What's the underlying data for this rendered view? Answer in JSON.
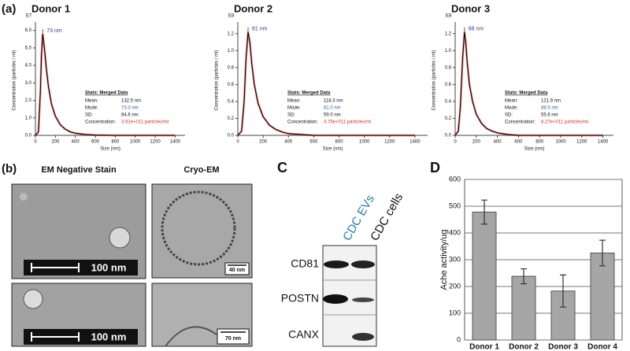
{
  "panels": {
    "a": "(a)",
    "b": "(b)",
    "c": "C",
    "d": "D"
  },
  "em": {
    "left_title": "EM Negative Stain",
    "right_title": "Cryo-EM",
    "scale_1": "100 nm",
    "scale_2": "100 nm",
    "scale_3": "40 nm",
    "scale_4": "70 nm"
  },
  "blot": {
    "lanes": [
      "CDC EVs",
      "CDC cells"
    ],
    "rows": [
      "CD81",
      "POSTN",
      "CANX"
    ]
  },
  "chart_data": [
    {
      "type": "line",
      "title": "Donor 1",
      "xlabel": "Size (nm)",
      "ylabel": "Concentration (particles / ml)",
      "y_exponent": "E7",
      "annotation": "73 nm",
      "x": [
        0,
        30,
        50,
        60,
        73,
        90,
        110,
        130,
        160,
        200,
        250,
        300,
        350,
        400,
        500,
        600,
        800,
        1000,
        1400
      ],
      "values": [
        0,
        0.2,
        2.5,
        4.5,
        5.8,
        5.0,
        3.8,
        2.8,
        1.8,
        1.1,
        0.6,
        0.35,
        0.2,
        0.12,
        0.05,
        0.02,
        0,
        0,
        0
      ],
      "color": "#000000",
      "xlim": [
        0,
        1500
      ],
      "xticks": [
        0,
        200,
        400,
        600,
        800,
        1000,
        1200,
        1400
      ],
      "ylim": [
        0,
        6.3
      ],
      "yticks": [
        {
          "value": 0,
          "label": "0.0"
        },
        {
          "value": 1,
          "label": "1.0"
        },
        {
          "value": 2,
          "label": "2.0"
        },
        {
          "value": 3,
          "label": "3.0"
        },
        {
          "value": 4,
          "label": "4.0"
        },
        {
          "value": 5,
          "label": "5.0"
        },
        {
          "value": 6,
          "label": "6.0"
        }
      ],
      "stats_title": "Stats: Merged Data",
      "stats": [
        [
          "Mean:",
          "132.5 nm"
        ],
        [
          "Mode:",
          "73.3 nm"
        ],
        [
          "SD:",
          "84.6 nm"
        ],
        [
          "Concentration:",
          "3.91e+011 particles/ml"
        ]
      ]
    },
    {
      "type": "line",
      "title": "Donor 2",
      "xlabel": "Size (nm)",
      "ylabel": "Concentration (particles / ml)",
      "y_exponent": "E8",
      "annotation": "81 nm",
      "x": [
        0,
        30,
        50,
        65,
        81,
        95,
        110,
        130,
        160,
        200,
        250,
        300,
        350,
        400,
        500,
        600,
        800,
        1000,
        1400
      ],
      "values": [
        0,
        0.05,
        0.4,
        0.9,
        1.22,
        1.1,
        0.85,
        0.6,
        0.38,
        0.22,
        0.12,
        0.07,
        0.04,
        0.02,
        0.01,
        0,
        0,
        0,
        0
      ],
      "color": "#000000",
      "xlim": [
        0,
        1500
      ],
      "xticks": [
        0,
        200,
        400,
        600,
        800,
        1000,
        1200,
        1400
      ],
      "ylim": [
        0,
        1.3
      ],
      "yticks": [
        {
          "value": 0,
          "label": "0.0"
        },
        0.2,
        0.4,
        0.6,
        0.8,
        {
          "value": 1,
          "label": "1.0"
        },
        1.2
      ],
      "stats_title": "Stats: Merged Data",
      "stats": [
        [
          "Mean:",
          "118.3 nm"
        ],
        [
          "Mode:",
          "81.0 nm"
        ],
        [
          "SD:",
          "59.0 nm"
        ],
        [
          "Concentration:",
          "3.75e+011 particles/ml"
        ]
      ]
    },
    {
      "type": "line",
      "title": "Donor 3",
      "xlabel": "Size (nm)",
      "ylabel": "Concentration (particles / ml)",
      "y_exponent": "E8",
      "annotation": "88 nm",
      "x": [
        0,
        30,
        50,
        70,
        88,
        100,
        115,
        135,
        165,
        200,
        250,
        300,
        350,
        400,
        500,
        600,
        800,
        1000,
        1400
      ],
      "values": [
        0,
        0.05,
        0.35,
        0.9,
        1.22,
        1.1,
        0.85,
        0.6,
        0.4,
        0.25,
        0.14,
        0.08,
        0.05,
        0.03,
        0.01,
        0,
        0,
        0,
        0
      ],
      "color": "#000000",
      "xlim": [
        0,
        1500
      ],
      "xticks": [
        0,
        200,
        400,
        600,
        800,
        1000,
        1200,
        1400
      ],
      "ylim": [
        0,
        1.3
      ],
      "yticks": [
        {
          "value": 0,
          "label": "0.0"
        },
        0.2,
        0.4,
        0.6,
        0.8,
        {
          "value": 1,
          "label": "1.0"
        },
        1.2
      ],
      "stats_title": "Stats: Merged Data",
      "stats": [
        [
          "Mean:",
          "121.9 nm"
        ],
        [
          "Mode:",
          "88.5 nm"
        ],
        [
          "SD:",
          "55.6 nm"
        ],
        [
          "Concentration:",
          "8.27e+011 particles/ml"
        ]
      ]
    },
    {
      "type": "bar",
      "ylabel": "Ache activity/ug",
      "categories": [
        "Donor 1",
        "Donor 2",
        "Donor 3",
        "Donor 4"
      ],
      "values": [
        478,
        238,
        183,
        325
      ],
      "errors": [
        45,
        28,
        60,
        48
      ],
      "color": "#a6a6a6",
      "ylim": [
        0,
        600
      ],
      "yticks": [
        0,
        100,
        200,
        300,
        400,
        500,
        600
      ],
      "grid": true
    }
  ]
}
